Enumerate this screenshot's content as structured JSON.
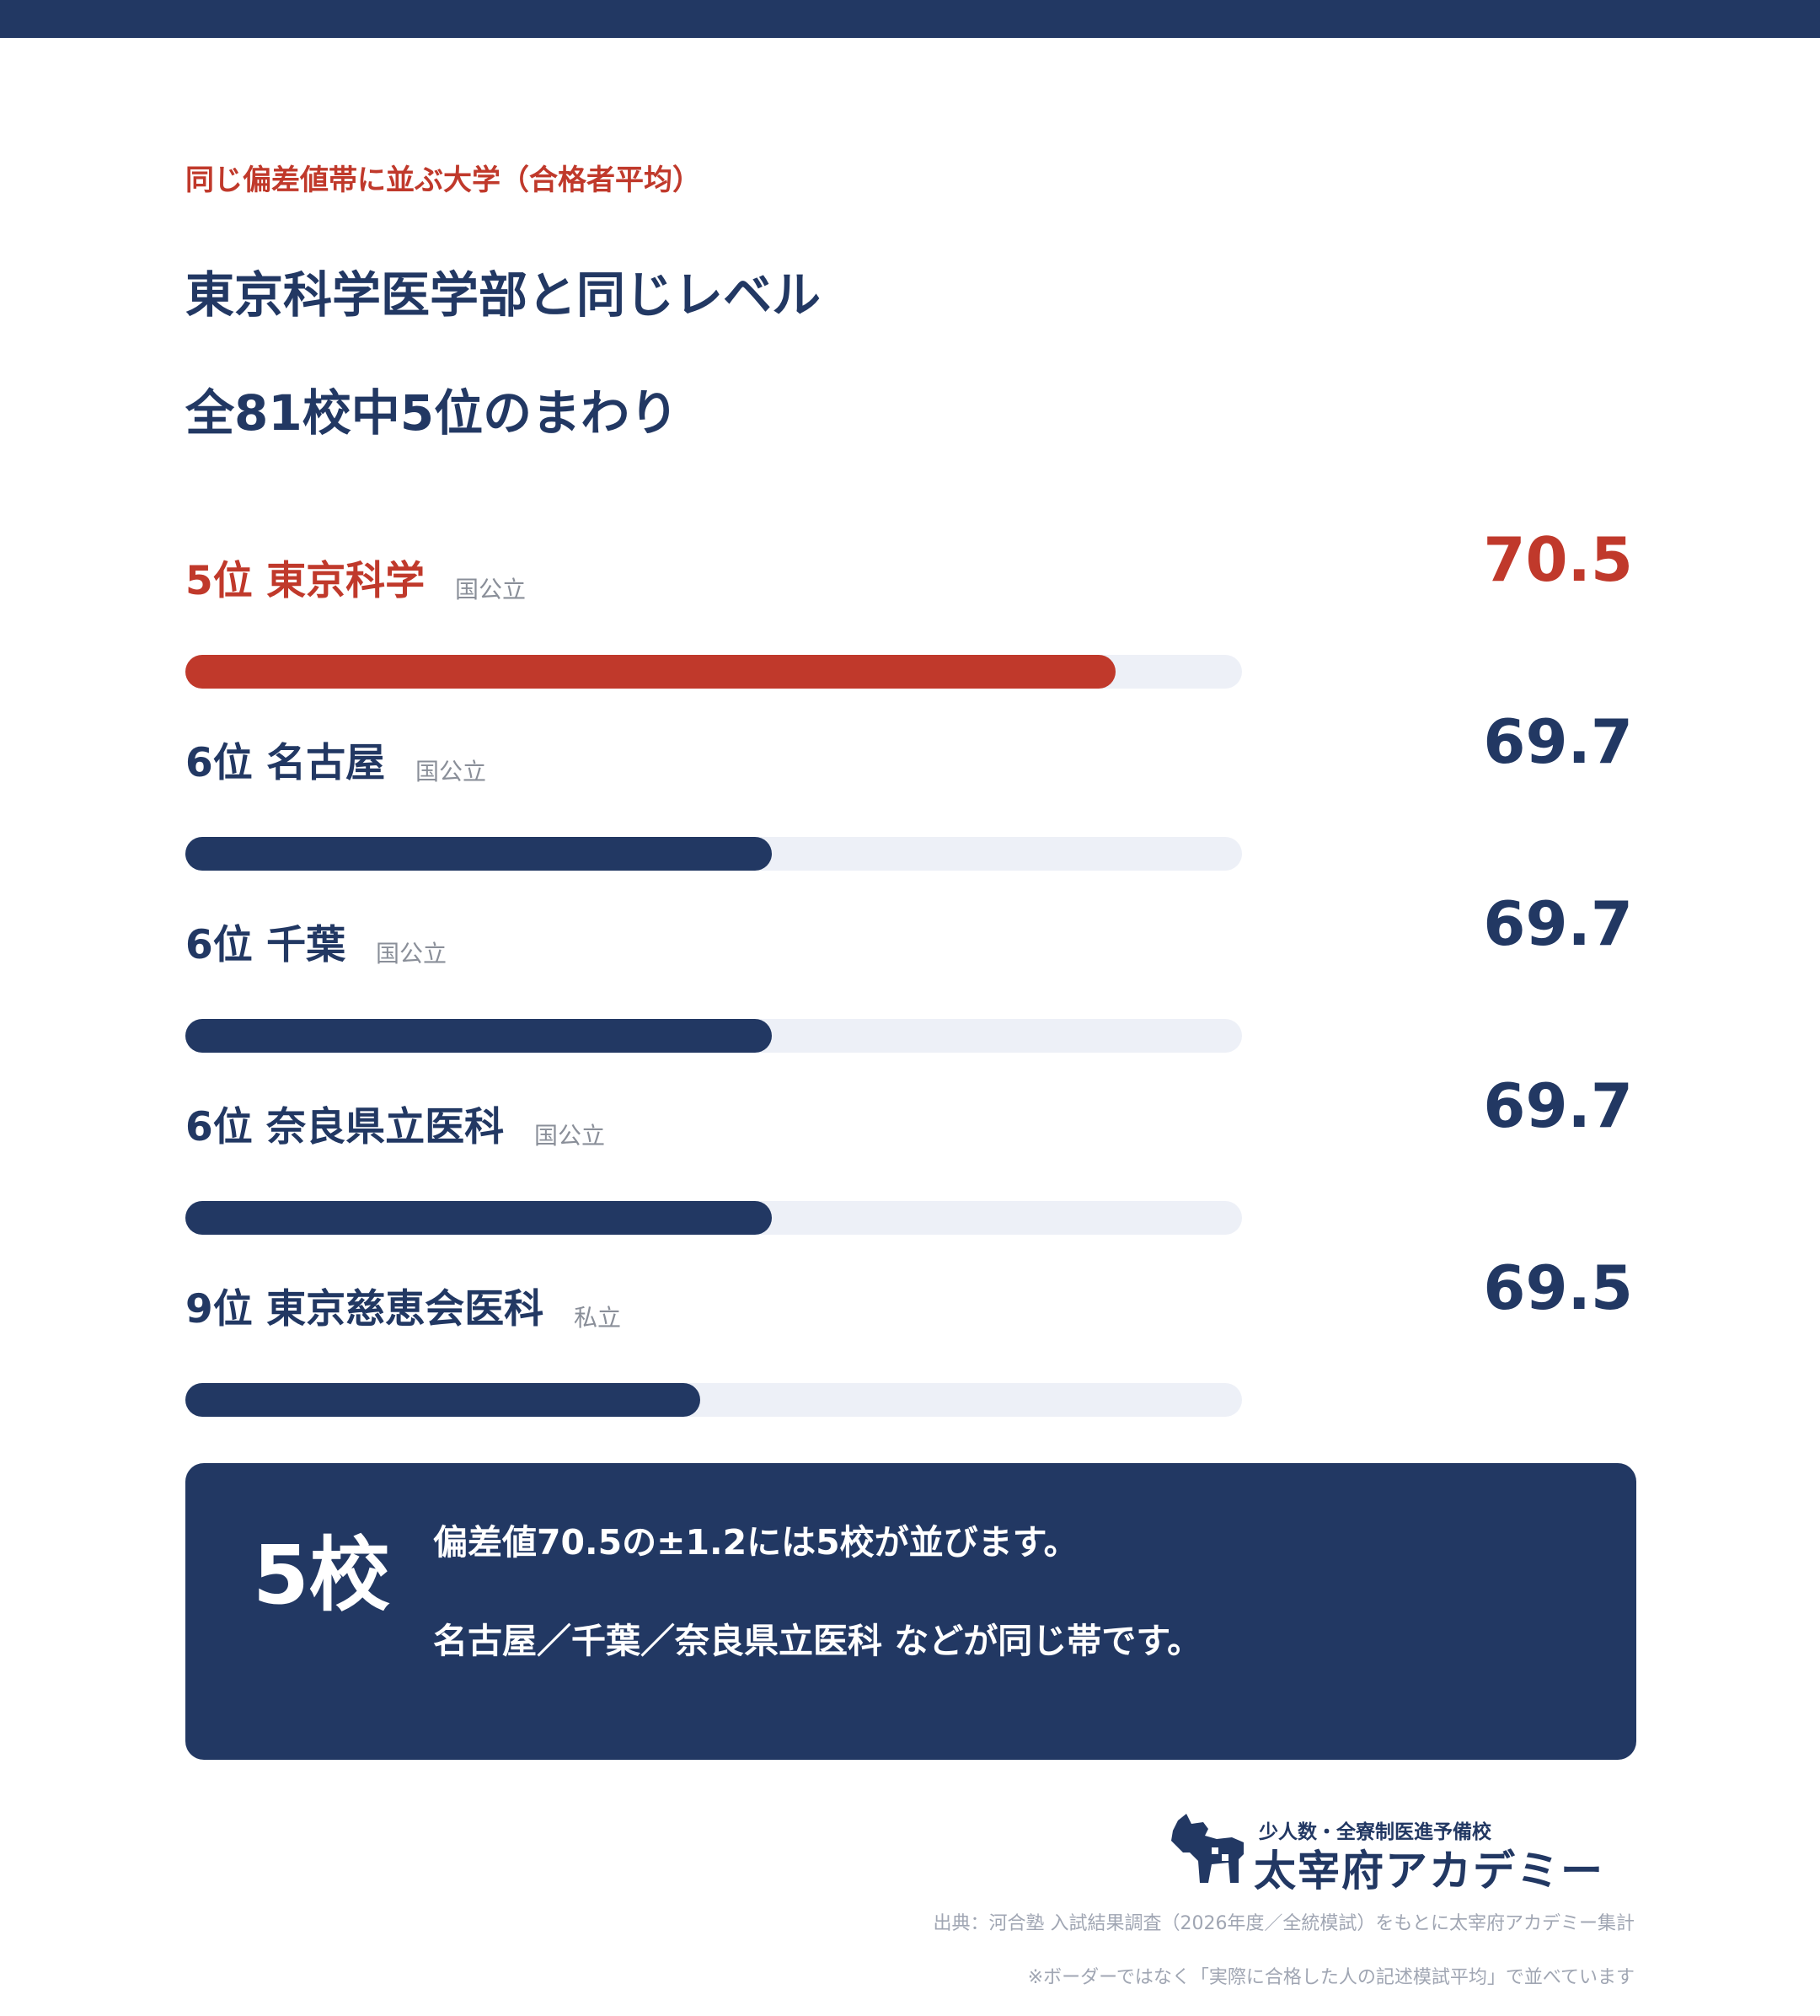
{
  "header": {
    "eyebrow": "同じ偏差値帯に並ぶ大学（合格者平均）",
    "title_line1": "東京科学医学部と同じレベル",
    "title_line2": "全81校中5位のまわり"
  },
  "colors": {
    "navy": "#223863",
    "highlight_red": "#c0392b",
    "track": "#edf0f7"
  },
  "chart_data": {
    "type": "bar",
    "orientation": "horizontal",
    "categories": [
      "5位 東京科学",
      "6位 名古屋",
      "6位 千葉",
      "6位 奈良県立医科",
      "9位 東京慈恵会医科"
    ],
    "series": [
      {
        "values": [
          70.5,
          69.7,
          69.7,
          69.7,
          69.5
        ]
      }
    ],
    "value_labels": [
      "70.5",
      "69.7",
      "69.7",
      "69.7",
      "69.5"
    ],
    "bar_fill_fraction": [
      0.88,
      0.555,
      0.555,
      0.555,
      0.487
    ],
    "highlight_index": 0,
    "rows": [
      {
        "rank": "5位",
        "name": "東京科学",
        "label": "5位 東京科学",
        "type": "国公立",
        "value": "70.5"
      },
      {
        "rank": "6位",
        "name": "名古屋",
        "label": "6位 名古屋",
        "type": "国公立",
        "value": "69.7"
      },
      {
        "rank": "6位",
        "name": "千葉",
        "label": "6位 千葉",
        "type": "国公立",
        "value": "69.7"
      },
      {
        "rank": "6位",
        "name": "奈良県立医科",
        "label": "6位 奈良県立医科",
        "type": "国公立",
        "value": "69.7"
      },
      {
        "rank": "9位",
        "name": "東京慈恵会医科",
        "label": "9位 東京慈恵会医科",
        "type": "私立",
        "value": "69.5"
      }
    ]
  },
  "summary": {
    "count": "5校",
    "line1": "偏差値70.5の±1.2には5校が並びます。",
    "line2": "名古屋／千葉／奈良県立医科 などが同じ帯です。"
  },
  "footer": {
    "logo_tagline": "少人数・全寮制医進予備校",
    "logo_name": "太宰府アカデミー",
    "logo_icon": "dog-silhouette-icon",
    "source": "出典：河合塾 入試結果調査（2026年度／全統模試）をもとに太宰府アカデミー集計",
    "note": "※ボーダーではなく「実際に合格した人の記述模試平均」で並べています"
  }
}
